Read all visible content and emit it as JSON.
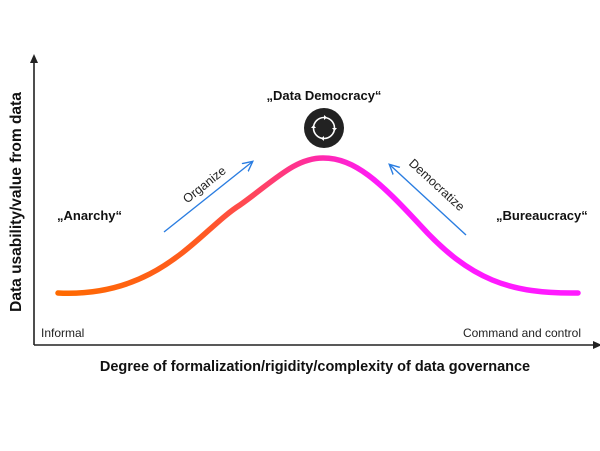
{
  "diagram": {
    "y_axis_label": "Data usability/value from data",
    "x_axis_label": "Degree of formalization/rigidity/complexity of data governance",
    "x_min_label": "Informal",
    "x_max_label": "Command and control",
    "peak_label": "„Data Democracy“",
    "left_label": "„Anarchy“",
    "right_label": "„Bureaucracy“",
    "left_arrow_label": "Organize",
    "right_arrow_label": "Democratize",
    "peak_icon": "cycle-arrows-icon",
    "colors": {
      "axis": "#222222",
      "curve_start": "#ff6a00",
      "curve_end": "#ff1aff",
      "arrow": "#2a7de1",
      "icon_bg": "#222222"
    }
  }
}
